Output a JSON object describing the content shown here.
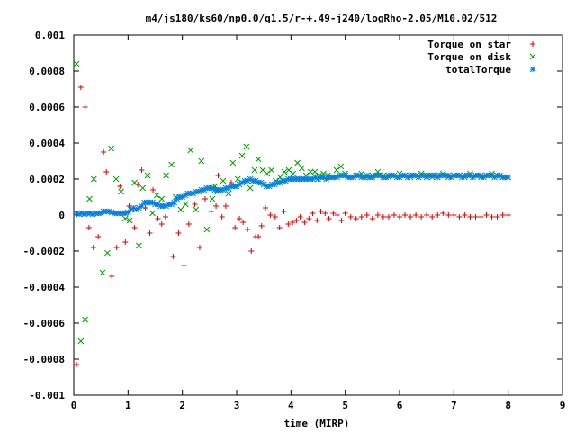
{
  "chart_data": {
    "type": "scatter",
    "title": "m4/js180/ks60/np0.0/q1.5/r-+.49-j240/logRho-2.05/M10.02/512",
    "xlabel": "time (MIRP)",
    "ylabel": "",
    "xlim": [
      0,
      9
    ],
    "ylim": [
      -0.001,
      0.001
    ],
    "xticks": [
      "0",
      "1",
      "2",
      "3",
      "4",
      "5",
      "6",
      "7",
      "8",
      "9"
    ],
    "yticks": [
      "-0.001",
      "-0.0008",
      "-0.0006",
      "-0.0004",
      "-0.0002",
      "0",
      "0.0002",
      "0.0004",
      "0.0006",
      "0.0008",
      "0.001"
    ],
    "grid": false,
    "legend_position": "top-right",
    "series": [
      {
        "name": "Torque on star",
        "color": "#e00000",
        "marker": "plus",
        "x": [
          0.05,
          0.13,
          0.21,
          0.28,
          0.36,
          0.45,
          0.55,
          0.6,
          0.7,
          0.79,
          0.85,
          0.95,
          1.02,
          1.12,
          1.18,
          1.25,
          1.32,
          1.4,
          1.46,
          1.55,
          1.62,
          1.69,
          1.75,
          1.83,
          1.93,
          2.03,
          2.12,
          2.23,
          2.32,
          2.42,
          2.53,
          2.62,
          2.66,
          2.73,
          2.8,
          2.9,
          2.97,
          3.05,
          3.12,
          3.2,
          3.27,
          3.35,
          3.4,
          3.46,
          3.53,
          3.62,
          3.71,
          3.79,
          3.87,
          3.95,
          4.03,
          4.1,
          4.17,
          4.25,
          4.33,
          4.4,
          4.48,
          4.55,
          4.63,
          4.7,
          4.78,
          4.85,
          4.93,
          5.0,
          5.1,
          5.2,
          5.3,
          5.4,
          5.5,
          5.6,
          5.7,
          5.8,
          5.9,
          6.0,
          6.1,
          6.2,
          6.3,
          6.4,
          6.5,
          6.6,
          6.7,
          6.8,
          6.9,
          7.0,
          7.1,
          7.2,
          7.3,
          7.4,
          7.5,
          7.6,
          7.7,
          7.8,
          7.9,
          8.0
        ],
        "y": [
          -0.00083,
          0.00071,
          0.0006,
          -7e-05,
          -0.00018,
          -0.00012,
          0.00035,
          0.00024,
          -0.00034,
          -0.00018,
          0.00016,
          -0.00015,
          5e-05,
          -7e-05,
          0.00017,
          0.00025,
          4e-05,
          -0.0001,
          0.00014,
          -2e-05,
          -5e-05,
          -1e-05,
          6e-05,
          -0.00023,
          -0.0001,
          -0.00028,
          -5e-05,
          6e-05,
          -0.00018,
          9e-05,
          2e-05,
          5e-05,
          0.00022,
          -1e-05,
          5e-05,
          0.00018,
          -7e-05,
          -2e-05,
          -4e-05,
          -8e-05,
          -0.0002,
          -0.00012,
          -0.00012,
          -6e-05,
          4e-05,
          0.0,
          -1e-05,
          -7e-05,
          2e-05,
          -5e-05,
          -4e-05,
          -3e-05,
          -1e-05,
          -4e-05,
          -2e-05,
          1e-05,
          -3e-05,
          2e-05,
          1e-05,
          -2e-05,
          1e-05,
          0.0,
          -3e-05,
          1e-05,
          -1e-05,
          -2e-05,
          -1e-05,
          0.0,
          -2e-05,
          0.0,
          -1e-05,
          -1e-05,
          0.0,
          -1e-05,
          0.0,
          -1e-05,
          0.0,
          -1e-05,
          0.0,
          -1e-05,
          0.0,
          1e-05,
          0.0,
          0.0,
          -1e-05,
          0.0,
          -1e-05,
          -1e-05,
          -1e-05,
          0.0,
          -1e-05,
          -1e-05,
          0.0,
          0.0
        ]
      },
      {
        "name": "Torque on disk",
        "color": "#00a000",
        "marker": "cross",
        "x": [
          0.05,
          0.13,
          0.21,
          0.29,
          0.37,
          0.53,
          0.62,
          0.69,
          0.78,
          0.87,
          0.95,
          1.03,
          1.12,
          1.2,
          1.27,
          1.36,
          1.45,
          1.53,
          1.62,
          1.7,
          1.8,
          1.88,
          1.97,
          2.06,
          2.15,
          2.25,
          2.35,
          2.45,
          2.55,
          2.6,
          2.65,
          2.75,
          2.85,
          2.93,
          3.02,
          3.1,
          3.18,
          3.25,
          3.33,
          3.4,
          3.48,
          3.56,
          3.64,
          3.72,
          3.8,
          3.88,
          3.96,
          4.04,
          4.12,
          4.2,
          4.28,
          4.36,
          4.44,
          4.52,
          4.6,
          4.68,
          4.76,
          4.84,
          4.92,
          5.0,
          5.1,
          5.2,
          5.3,
          5.4,
          5.5,
          5.6,
          5.7,
          5.8,
          5.9,
          6.0,
          6.1,
          6.2,
          6.3,
          6.4,
          6.5,
          6.6,
          6.7,
          6.8,
          6.9,
          7.0,
          7.1,
          7.2,
          7.3,
          7.4,
          7.5,
          7.6,
          7.7,
          7.8,
          7.9,
          8.0
        ],
        "y": [
          0.00084,
          -0.0007,
          -0.00058,
          9e-05,
          0.0002,
          -0.00032,
          -0.00021,
          0.00037,
          0.0002,
          0.00013,
          -2e-05,
          -3e-05,
          0.00018,
          -0.00017,
          0.00015,
          0.00022,
          1e-05,
          0.00011,
          9e-05,
          0.00022,
          0.00028,
          0.0001,
          3e-05,
          6e-05,
          0.00036,
          3e-05,
          0.0003,
          -8e-05,
          9e-05,
          0.00016,
          0.00013,
          0.00019,
          0.00012,
          0.00029,
          0.0002,
          0.00033,
          0.00038,
          0.00015,
          0.00025,
          0.00031,
          0.00025,
          0.00023,
          0.00025,
          0.00019,
          0.00021,
          0.00024,
          0.00025,
          0.00023,
          0.00029,
          0.00026,
          0.00022,
          0.00024,
          0.00024,
          0.00022,
          0.00023,
          0.00022,
          0.00021,
          0.00025,
          0.00027,
          0.00023,
          0.00021,
          0.00022,
          0.00023,
          0.00021,
          0.00022,
          0.00024,
          0.00022,
          0.00021,
          0.00022,
          0.00023,
          0.00022,
          0.00021,
          0.00022,
          0.00023,
          0.00022,
          0.00021,
          0.00022,
          0.00023,
          0.00021,
          0.00022,
          0.00022,
          0.00021,
          0.00023,
          0.00022,
          0.00021,
          0.00022,
          0.00023,
          0.00022,
          0.00021,
          0.00021
        ]
      },
      {
        "name": "totalTorque",
        "color": "#0080e0",
        "marker": "star",
        "x": [
          0.05,
          0.1,
          0.15,
          0.2,
          0.25,
          0.3,
          0.35,
          0.4,
          0.45,
          0.5,
          0.55,
          0.6,
          0.65,
          0.7,
          0.75,
          0.8,
          0.85,
          0.9,
          0.95,
          1.0,
          1.05,
          1.1,
          1.15,
          1.2,
          1.25,
          1.3,
          1.35,
          1.4,
          1.45,
          1.5,
          1.55,
          1.6,
          1.65,
          1.7,
          1.75,
          1.8,
          1.85,
          1.9,
          1.95,
          2.0,
          2.05,
          2.1,
          2.15,
          2.2,
          2.25,
          2.3,
          2.35,
          2.4,
          2.45,
          2.5,
          2.55,
          2.6,
          2.65,
          2.7,
          2.75,
          2.8,
          2.85,
          2.9,
          2.95,
          3.0,
          3.05,
          3.1,
          3.15,
          3.2,
          3.25,
          3.3,
          3.35,
          3.4,
          3.45,
          3.5,
          3.55,
          3.6,
          3.65,
          3.7,
          3.75,
          3.8,
          3.85,
          3.9,
          3.95,
          4.0,
          4.05,
          4.1,
          4.15,
          4.2,
          4.25,
          4.3,
          4.35,
          4.4,
          4.45,
          4.5,
          4.55,
          4.6,
          4.65,
          4.7,
          4.75,
          4.8,
          4.85,
          4.9,
          4.95,
          5.0,
          5.05,
          5.1,
          5.15,
          5.2,
          5.25,
          5.3,
          5.35,
          5.4,
          5.45,
          5.5,
          5.55,
          5.6,
          5.65,
          5.7,
          5.75,
          5.8,
          5.85,
          5.9,
          5.95,
          6.0,
          6.05,
          6.1,
          6.15,
          6.2,
          6.25,
          6.3,
          6.35,
          6.4,
          6.45,
          6.5,
          6.55,
          6.6,
          6.65,
          6.7,
          6.75,
          6.8,
          6.85,
          6.9,
          6.95,
          7.0,
          7.05,
          7.1,
          7.15,
          7.2,
          7.25,
          7.3,
          7.35,
          7.4,
          7.45,
          7.5,
          7.55,
          7.6,
          7.65,
          7.7,
          7.75,
          7.8,
          7.85,
          7.9,
          7.95,
          8.0
        ],
        "y": [
          1e-05,
          5e-06,
          1e-05,
          5e-06,
          1e-05,
          1e-05,
          5e-06,
          1e-05,
          1e-05,
          1e-05,
          2e-05,
          2e-05,
          2e-05,
          1.5e-05,
          1e-05,
          1e-05,
          1e-05,
          1e-05,
          1e-05,
          1.5e-05,
          3e-05,
          4e-05,
          3e-05,
          4e-05,
          5e-05,
          7e-05,
          7e-05,
          7e-05,
          7e-05,
          6e-05,
          6e-05,
          5e-05,
          5e-05,
          5e-05,
          6e-05,
          6e-05,
          7e-05,
          9e-05,
          0.0001,
          0.0001,
          0.00011,
          0.00012,
          0.00012,
          0.00012,
          0.00013,
          0.00013,
          0.00014,
          0.00014,
          0.00015,
          0.00015,
          0.00015,
          0.00014,
          0.00014,
          0.00014,
          0.00014,
          0.00015,
          0.00015,
          0.00016,
          0.00016,
          0.00016,
          0.00017,
          0.00018,
          0.00019,
          0.00019,
          0.0002,
          0.00019,
          0.00019,
          0.00018,
          0.00018,
          0.00017,
          0.00016,
          0.00016,
          0.00017,
          0.00017,
          0.00018,
          0.00018,
          0.00019,
          0.00019,
          0.0002,
          0.0002,
          0.0002,
          0.0002,
          0.0002,
          0.0002,
          0.0002,
          0.0002,
          0.0002,
          0.0002,
          0.00021,
          0.0002,
          0.00021,
          0.00021,
          0.0002,
          0.00021,
          0.00021,
          0.00021,
          0.00021,
          0.00022,
          0.00022,
          0.00022,
          0.00021,
          0.00021,
          0.00021,
          0.00022,
          0.00022,
          0.00021,
          0.00021,
          0.00022,
          0.00021,
          0.00021,
          0.00022,
          0.00022,
          0.00022,
          0.00021,
          0.00021,
          0.00022,
          0.00022,
          0.00022,
          0.00021,
          0.00021,
          0.00022,
          0.00022,
          0.00021,
          0.00022,
          0.00022,
          0.00022,
          0.00021,
          0.00022,
          0.00022,
          0.00021,
          0.00022,
          0.00022,
          0.00022,
          0.00021,
          0.00022,
          0.00022,
          0.00022,
          0.00022,
          0.00021,
          0.00022,
          0.00022,
          0.00022,
          0.00021,
          0.00022,
          0.00022,
          0.00022,
          0.00021,
          0.00022,
          0.00022,
          0.00022,
          0.00021,
          0.00022,
          0.00022,
          0.00022,
          0.00021,
          0.00022,
          0.00022,
          0.00021,
          0.00021,
          0.00021
        ]
      }
    ]
  }
}
